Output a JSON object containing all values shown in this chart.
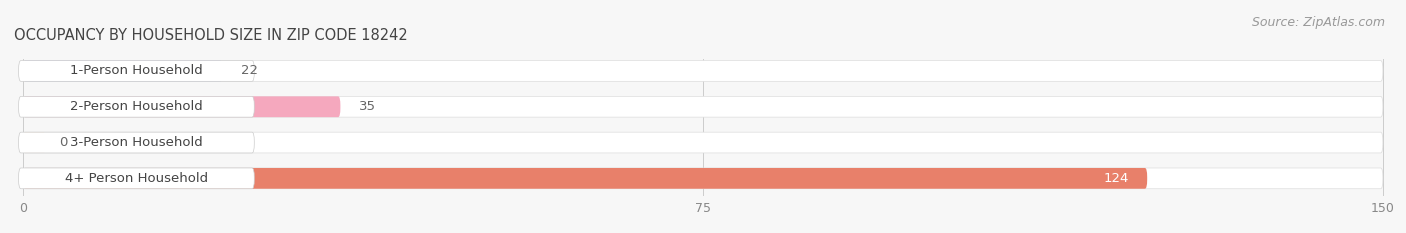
{
  "title": "OCCUPANCY BY HOUSEHOLD SIZE IN ZIP CODE 18242",
  "source": "Source: ZipAtlas.com",
  "categories": [
    "1-Person Household",
    "2-Person Household",
    "3-Person Household",
    "4+ Person Household"
  ],
  "values": [
    22,
    35,
    0,
    124
  ],
  "bar_colors": [
    "#b0b8e8",
    "#f5a8be",
    "#f5c89a",
    "#e8806a"
  ],
  "xlim": [
    0,
    150
  ],
  "xticks": [
    0,
    75,
    150
  ],
  "bg_color": "#f7f7f7",
  "bar_bg_color": "#e8e8e8",
  "title_fontsize": 10.5,
  "source_fontsize": 9,
  "label_fontsize": 9.5,
  "value_fontsize": 9.5,
  "value_color_inside": "#ffffff",
  "value_color_outside": "#666666"
}
